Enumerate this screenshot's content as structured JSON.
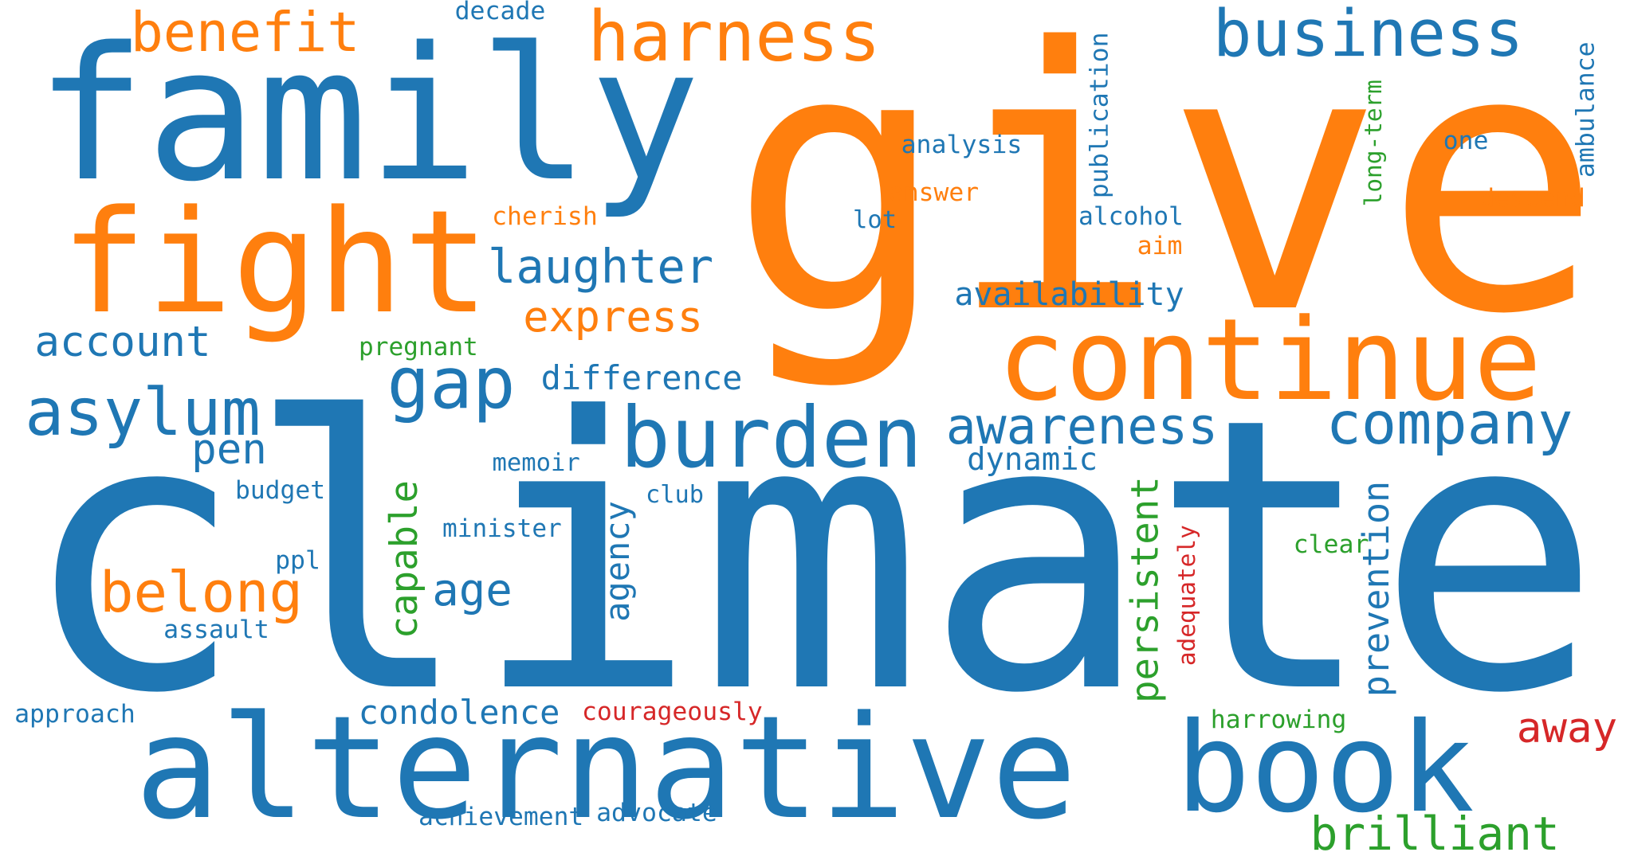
{
  "palette": {
    "blue": "#1f77b4",
    "orange": "#ff7f0e",
    "green": "#2ca02c",
    "red": "#d62728"
  },
  "words": [
    {
      "text": "climate",
      "color": "blue",
      "vertical": false
    },
    {
      "text": "give",
      "color": "orange",
      "vertical": false
    },
    {
      "text": "family",
      "color": "blue",
      "vertical": false
    },
    {
      "text": "alternative",
      "color": "blue",
      "vertical": false
    },
    {
      "text": "continue",
      "color": "orange",
      "vertical": false
    },
    {
      "text": "fight",
      "color": "orange",
      "vertical": false
    },
    {
      "text": "book",
      "color": "blue",
      "vertical": false
    },
    {
      "text": "burden",
      "color": "blue",
      "vertical": false
    },
    {
      "text": "harness",
      "color": "orange",
      "vertical": false
    },
    {
      "text": "business",
      "color": "blue",
      "vertical": false
    },
    {
      "text": "company",
      "color": "blue",
      "vertical": false
    },
    {
      "text": "asylum",
      "color": "blue",
      "vertical": false
    },
    {
      "text": "benefit",
      "color": "orange",
      "vertical": false
    },
    {
      "text": "gap",
      "color": "blue",
      "vertical": false
    },
    {
      "text": "awareness",
      "color": "blue",
      "vertical": false
    },
    {
      "text": "belong",
      "color": "orange",
      "vertical": false
    },
    {
      "text": "brilliant",
      "color": "green",
      "vertical": false
    },
    {
      "text": "laughter",
      "color": "blue",
      "vertical": false
    },
    {
      "text": "express",
      "color": "orange",
      "vertical": false
    },
    {
      "text": "account",
      "color": "blue",
      "vertical": false
    },
    {
      "text": "away",
      "color": "red",
      "vertical": false
    },
    {
      "text": "age",
      "color": "blue",
      "vertical": false
    },
    {
      "text": "prevention",
      "color": "blue",
      "vertical": true
    },
    {
      "text": "persistent",
      "color": "green",
      "vertical": true
    },
    {
      "text": "capable",
      "color": "green",
      "vertical": true
    },
    {
      "text": "agency",
      "color": "blue",
      "vertical": true
    },
    {
      "text": "pen",
      "color": "blue",
      "vertical": false
    },
    {
      "text": "difference",
      "color": "blue",
      "vertical": false
    },
    {
      "text": "availability",
      "color": "blue",
      "vertical": false
    },
    {
      "text": "dynamic",
      "color": "blue",
      "vertical": false
    },
    {
      "text": "condolence",
      "color": "blue",
      "vertical": false
    },
    {
      "text": "courageously",
      "color": "red",
      "vertical": false
    },
    {
      "text": "approach",
      "color": "blue",
      "vertical": false
    },
    {
      "text": "harrowing",
      "color": "green",
      "vertical": false
    },
    {
      "text": "achievement",
      "color": "blue",
      "vertical": false
    },
    {
      "text": "advocate",
      "color": "blue",
      "vertical": false
    },
    {
      "text": "pregnant",
      "color": "green",
      "vertical": false
    },
    {
      "text": "memoir",
      "color": "blue",
      "vertical": false
    },
    {
      "text": "budget",
      "color": "blue",
      "vertical": false
    },
    {
      "text": "club",
      "color": "blue",
      "vertical": false
    },
    {
      "text": "minister",
      "color": "blue",
      "vertical": false
    },
    {
      "text": "ppl",
      "color": "blue",
      "vertical": false
    },
    {
      "text": "assault",
      "color": "blue",
      "vertical": false
    },
    {
      "text": "clear",
      "color": "green",
      "vertical": false
    },
    {
      "text": "adequately",
      "color": "red",
      "vertical": true
    },
    {
      "text": "decade",
      "color": "blue",
      "vertical": false
    },
    {
      "text": "cherish",
      "color": "orange",
      "vertical": false
    },
    {
      "text": "analysis",
      "color": "blue",
      "vertical": false
    },
    {
      "text": "answer",
      "color": "orange",
      "vertical": false
    },
    {
      "text": "lot",
      "color": "blue",
      "vertical": false
    },
    {
      "text": "alcohol",
      "color": "blue",
      "vertical": false
    },
    {
      "text": "aim",
      "color": "orange",
      "vertical": false
    },
    {
      "text": "publication",
      "color": "blue",
      "vertical": true
    },
    {
      "text": "long-term",
      "color": "green",
      "vertical": true
    },
    {
      "text": "one",
      "color": "blue",
      "vertical": false
    },
    {
      "text": "descend",
      "color": "orange",
      "vertical": false
    },
    {
      "text": "ambulance",
      "color": "blue",
      "vertical": true
    }
  ]
}
